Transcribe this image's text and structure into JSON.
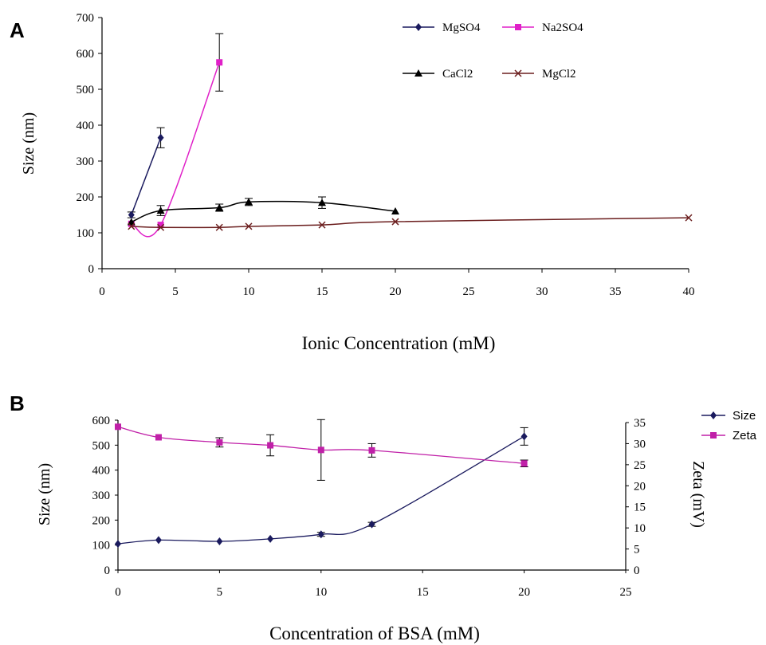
{
  "figure": {
    "panel_a_label": "A",
    "panel_b_label": "B"
  },
  "chart_data": [
    {
      "type": "line",
      "panel": "A",
      "xlabel": "Ionic Concentration (mM)",
      "ylabel": "Size (nm)",
      "xlim": [
        0,
        40
      ],
      "ylim": [
        0,
        700
      ],
      "xticks": [
        0,
        5,
        10,
        15,
        20,
        25,
        30,
        35,
        40
      ],
      "yticks": [
        0,
        100,
        200,
        300,
        400,
        500,
        600,
        700
      ],
      "grid": false,
      "legend_position": "top-right",
      "series": [
        {
          "name": "MgSO4",
          "color": "#1a1a5e",
          "marker": "diamond",
          "x": [
            2,
            4
          ],
          "y": [
            150,
            365
          ],
          "err": [
            8,
            28
          ]
        },
        {
          "name": "Na2SO4",
          "color": "#e020c8",
          "marker": "square",
          "x": [
            2,
            4,
            8
          ],
          "y": [
            125,
            122,
            575
          ],
          "err": [
            0,
            0,
            80
          ]
        },
        {
          "name": "CaCl2",
          "color": "#000000",
          "marker": "triangle",
          "x": [
            2,
            4,
            8,
            10,
            15,
            20
          ],
          "y": [
            130,
            162,
            170,
            186,
            184,
            160
          ],
          "err": [
            0,
            14,
            10,
            10,
            16,
            0
          ]
        },
        {
          "name": "MgCl2",
          "color": "#6b1e1e",
          "marker": "cross",
          "x": [
            2,
            4,
            8,
            10,
            15,
            20,
            40
          ],
          "y": [
            118,
            115,
            115,
            118,
            122,
            131,
            142
          ],
          "err": [
            0,
            0,
            0,
            0,
            0,
            0,
            0
          ]
        }
      ]
    },
    {
      "type": "line",
      "panel": "B",
      "xlabel": "Concentration of BSA (mM)",
      "ylabel": "Size (nm)",
      "y2label": "Zeta (mV)",
      "xlim": [
        0,
        25
      ],
      "ylim": [
        0,
        600
      ],
      "y2lim": [
        0,
        35
      ],
      "xticks": [
        0,
        5,
        10,
        15,
        20,
        25
      ],
      "yticks": [
        0,
        100,
        200,
        300,
        400,
        500,
        600
      ],
      "y2ticks": [
        0,
        5,
        10,
        15,
        20,
        25,
        30,
        35
      ],
      "grid": false,
      "legend_position": "top-right outside",
      "series": [
        {
          "name": "Size",
          "axis": "left",
          "color": "#1a1a5e",
          "marker": "diamond",
          "x": [
            0,
            2,
            5,
            7.5,
            10,
            12.5,
            20
          ],
          "y": [
            105,
            120,
            115,
            125,
            143,
            183,
            535
          ],
          "err": [
            0,
            0,
            0,
            0,
            8,
            8,
            35
          ]
        },
        {
          "name": "Zeta",
          "axis": "right",
          "color": "#c020a8",
          "marker": "square",
          "x": [
            0,
            2,
            5,
            7.5,
            10,
            12.5,
            20
          ],
          "y": [
            34,
            31.5,
            30.3,
            29.6,
            28.5,
            28.4,
            25.3
          ],
          "err": [
            0,
            0,
            1.1,
            2.5,
            7.2,
            1.6,
            0.8
          ]
        }
      ]
    }
  ]
}
